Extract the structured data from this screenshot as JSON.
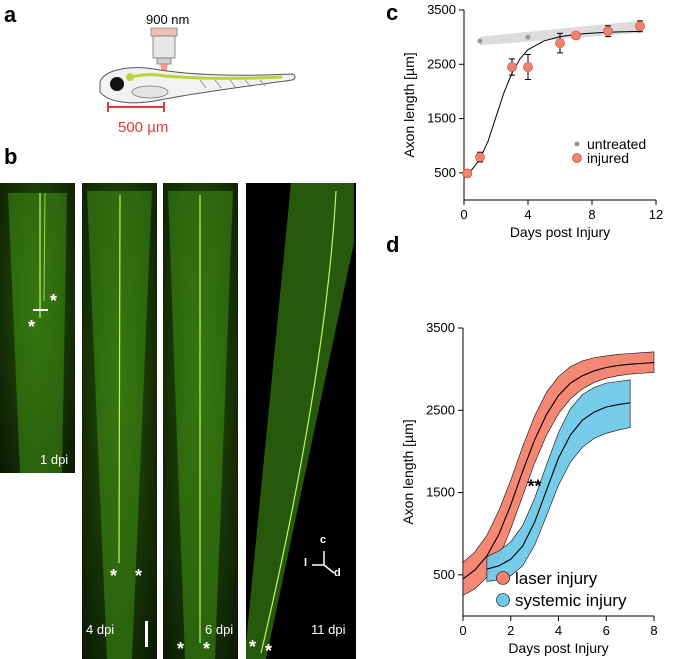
{
  "panels": {
    "a": {
      "label": "a",
      "laser_label": "900 nm",
      "scalebar_label": "500 µm",
      "laser_color": "#f08a7a",
      "scalebar_color": "#e03c31",
      "axon_color": "#b9d53a"
    },
    "b": {
      "label": "b",
      "images": [
        {
          "label": "1 dpi"
        },
        {
          "label": "4 dpi"
        },
        {
          "label": "6 dpi"
        },
        {
          "label": "11 dpi"
        }
      ],
      "asterisk": "*",
      "axes": {
        "c": "c",
        "l": "l",
        "d": "d"
      },
      "fluorescence_color": "#7fd23a"
    },
    "c": {
      "label": "c"
    },
    "d": {
      "label": "d"
    }
  },
  "chart_data": [
    {
      "panel": "c",
      "type": "scatter",
      "xlabel": "Days post Injury",
      "ylabel": "Axon length [µm]",
      "xlim": [
        0,
        12
      ],
      "ylim": [
        0,
        3500
      ],
      "xticks": [
        0,
        4,
        8,
        12
      ],
      "yticks": [
        500,
        1500,
        2500,
        3500
      ],
      "legend_position": "right",
      "series": [
        {
          "name": "untreated",
          "color": "#999999",
          "points": [
            {
              "x": 1,
              "y": 2930
            },
            {
              "x": 4,
              "y": 3000
            },
            {
              "x": 9,
              "y": 3100
            }
          ],
          "band_color": "#dcdcdc",
          "band": {
            "x": [
              1,
              11
            ],
            "lower": [
              2850,
              3080
            ],
            "upper": [
              3010,
              3300
            ]
          }
        },
        {
          "name": "injured",
          "color": "#f4826e",
          "points": [
            {
              "x": 0.2,
              "y": 490,
              "err": 40
            },
            {
              "x": 1,
              "y": 790,
              "err": 90
            },
            {
              "x": 3,
              "y": 2450,
              "err": 150
            },
            {
              "x": 4,
              "y": 2450,
              "err": 230
            },
            {
              "x": 6,
              "y": 2890,
              "err": 180
            },
            {
              "x": 7,
              "y": 3030,
              "err": 40
            },
            {
              "x": 9,
              "y": 3110,
              "err": 100
            },
            {
              "x": 11,
              "y": 3200,
              "err": 100
            }
          ]
        }
      ],
      "fit": {
        "color": "#000000",
        "x": [
          0,
          0.5,
          1,
          1.5,
          2,
          2.5,
          3,
          3.5,
          4,
          5,
          6,
          7,
          8,
          9,
          10,
          11
        ],
        "y": [
          480,
          560,
          760,
          1080,
          1530,
          1980,
          2340,
          2600,
          2770,
          2930,
          3010,
          3050,
          3075,
          3090,
          3100,
          3105
        ]
      }
    },
    {
      "panel": "d",
      "type": "area",
      "xlabel": "Days post Injury",
      "ylabel": "Axon length [µm]",
      "xlim": [
        0,
        8
      ],
      "ylim": [
        0,
        3500
      ],
      "xticks": [
        0,
        2,
        4,
        6,
        8
      ],
      "yticks": [
        500,
        1500,
        2500,
        3500
      ],
      "annotation": "**",
      "legend_position": "bottom-right",
      "series": [
        {
          "name": "laser injury",
          "color": "#f4826e",
          "x": [
            0,
            0.5,
            1,
            1.5,
            2,
            2.5,
            3,
            3.5,
            4,
            4.5,
            5,
            5.5,
            6,
            6.5,
            7,
            7.5,
            8
          ],
          "y": [
            450,
            560,
            730,
            990,
            1350,
            1760,
            2140,
            2450,
            2680,
            2830,
            2920,
            2980,
            3020,
            3045,
            3060,
            3070,
            3080
          ],
          "lower": [
            250,
            330,
            470,
            700,
            1060,
            1460,
            1860,
            2200,
            2460,
            2640,
            2760,
            2840,
            2890,
            2920,
            2940,
            2950,
            2960
          ],
          "upper": [
            650,
            780,
            980,
            1280,
            1650,
            2060,
            2430,
            2720,
            2910,
            3030,
            3100,
            3140,
            3160,
            3180,
            3190,
            3200,
            3210
          ]
        },
        {
          "name": "systemic injury",
          "color": "#6fc9e8",
          "x": [
            1,
            1.5,
            2,
            2.5,
            3,
            3.5,
            4,
            4.5,
            5,
            5.5,
            6,
            6.5,
            7
          ],
          "y": [
            570,
            610,
            690,
            850,
            1140,
            1530,
            1920,
            2200,
            2380,
            2480,
            2540,
            2570,
            2590
          ],
          "lower": [
            420,
            440,
            490,
            610,
            860,
            1220,
            1590,
            1870,
            2050,
            2160,
            2220,
            2260,
            2290
          ],
          "upper": [
            720,
            790,
            900,
            1100,
            1430,
            1840,
            2230,
            2520,
            2690,
            2780,
            2830,
            2850,
            2870
          ]
        }
      ]
    }
  ]
}
